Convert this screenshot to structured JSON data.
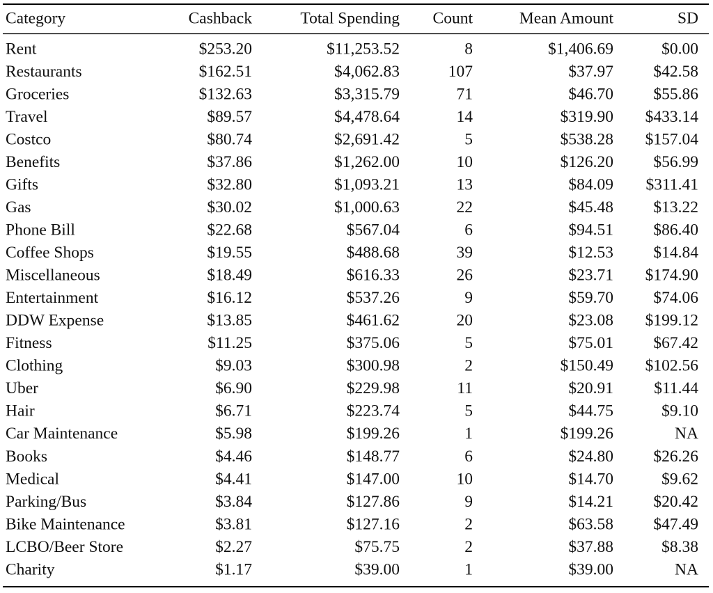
{
  "table": {
    "header": [
      "Category",
      "Cashback",
      "Total Spending",
      "Count",
      "Mean Amount",
      "SD"
    ],
    "rows": [
      [
        "Rent",
        "$253.20",
        "$11,253.52",
        "8",
        "$1,406.69",
        "$0.00"
      ],
      [
        "Restaurants",
        "$162.51",
        "$4,062.83",
        "107",
        "$37.97",
        "$42.58"
      ],
      [
        "Groceries",
        "$132.63",
        "$3,315.79",
        "71",
        "$46.70",
        "$55.86"
      ],
      [
        "Travel",
        "$89.57",
        "$4,478.64",
        "14",
        "$319.90",
        "$433.14"
      ],
      [
        "Costco",
        "$80.74",
        "$2,691.42",
        "5",
        "$538.28",
        "$157.04"
      ],
      [
        "Benefits",
        "$37.86",
        "$1,262.00",
        "10",
        "$126.20",
        "$56.99"
      ],
      [
        "Gifts",
        "$32.80",
        "$1,093.21",
        "13",
        "$84.09",
        "$311.41"
      ],
      [
        "Gas",
        "$30.02",
        "$1,000.63",
        "22",
        "$45.48",
        "$13.22"
      ],
      [
        "Phone Bill",
        "$22.68",
        "$567.04",
        "6",
        "$94.51",
        "$86.40"
      ],
      [
        "Coffee Shops",
        "$19.55",
        "$488.68",
        "39",
        "$12.53",
        "$14.84"
      ],
      [
        "Miscellaneous",
        "$18.49",
        "$616.33",
        "26",
        "$23.71",
        "$174.90"
      ],
      [
        "Entertainment",
        "$16.12",
        "$537.26",
        "9",
        "$59.70",
        "$74.06"
      ],
      [
        "DDW Expense",
        "$13.85",
        "$461.62",
        "20",
        "$23.08",
        "$199.12"
      ],
      [
        "Fitness",
        "$11.25",
        "$375.06",
        "5",
        "$75.01",
        "$67.42"
      ],
      [
        "Clothing",
        "$9.03",
        "$300.98",
        "2",
        "$150.49",
        "$102.56"
      ],
      [
        "Uber",
        "$6.90",
        "$229.98",
        "11",
        "$20.91",
        "$11.44"
      ],
      [
        "Hair",
        "$6.71",
        "$223.74",
        "5",
        "$44.75",
        "$9.10"
      ],
      [
        "Car Maintenance",
        "$5.98",
        "$199.26",
        "1",
        "$199.26",
        "NA"
      ],
      [
        "Books",
        "$4.46",
        "$148.77",
        "6",
        "$24.80",
        "$26.26"
      ],
      [
        "Medical",
        "$4.41",
        "$147.00",
        "10",
        "$14.70",
        "$9.62"
      ],
      [
        "Parking/Bus",
        "$3.84",
        "$127.86",
        "9",
        "$14.21",
        "$20.42"
      ],
      [
        "Bike Maintenance",
        "$3.81",
        "$127.16",
        "2",
        "$63.58",
        "$47.49"
      ],
      [
        "LCBO/Beer Store",
        "$2.27",
        "$75.75",
        "2",
        "$37.88",
        "$8.38"
      ],
      [
        "Charity",
        "$1.17",
        "$39.00",
        "1",
        "$39.00",
        "NA"
      ]
    ]
  }
}
